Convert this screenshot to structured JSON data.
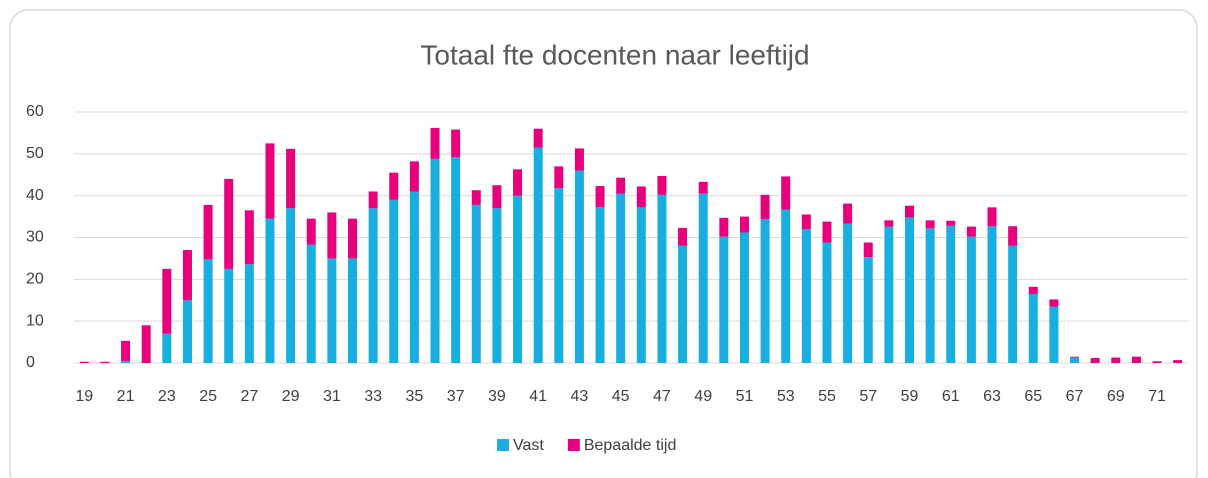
{
  "chart_data": {
    "type": "bar",
    "stacked": true,
    "title": "Totaal fte docenten naar leeftijd",
    "categories": [
      "19",
      null,
      "21",
      null,
      "23",
      null,
      "25",
      null,
      "27",
      null,
      "29",
      null,
      "31",
      null,
      "33",
      null,
      "35",
      null,
      "37",
      null,
      "39",
      null,
      "41",
      null,
      "43",
      null,
      "45",
      null,
      "47",
      null,
      "49",
      null,
      "51",
      null,
      "53",
      null,
      "55",
      null,
      "57",
      null,
      "59",
      null,
      "61",
      null,
      "63",
      null,
      "65",
      null,
      "67",
      null,
      "69",
      null,
      "71",
      null
    ],
    "series": [
      {
        "name": "Vast",
        "color": "#19ade0",
        "values": [
          0,
          0,
          0.5,
          0,
          7,
          15,
          24.8,
          22.5,
          23.6,
          34.5,
          37,
          28.3,
          25,
          25,
          37,
          39,
          41,
          48.8,
          49.2,
          37.8,
          37,
          40,
          51.5,
          41.8,
          46,
          37.3,
          40.5,
          37.2,
          40.2,
          28,
          40.5,
          30.2,
          31.2,
          34.4,
          36.7,
          32,
          28.8,
          33.3,
          25.3,
          32.6,
          34.8,
          32.2,
          32.8,
          30.2,
          32.7,
          28,
          16.5,
          13.5,
          1.3,
          0,
          0,
          0,
          0,
          0
        ]
      },
      {
        "name": "Bepaalde tijd",
        "color": "#e6007e",
        "values": [
          0.3,
          0.3,
          4.8,
          9,
          15.5,
          12,
          13,
          21.5,
          12.9,
          18,
          14.2,
          6.2,
          11,
          9.5,
          4,
          6.5,
          7.2,
          7.4,
          6.6,
          3.5,
          5.5,
          6.3,
          4.5,
          5.2,
          5.3,
          5,
          3.8,
          5,
          4.5,
          4.3,
          2.8,
          4.5,
          3.8,
          5.8,
          7.9,
          3.5,
          5,
          4.8,
          3.5,
          1.5,
          2.8,
          1.9,
          1.2,
          2.4,
          4.5,
          4.7,
          1.7,
          1.7,
          0.2,
          1.2,
          1.3,
          1.5,
          0.4,
          0.7
        ]
      }
    ],
    "ylim": [
      0,
      60
    ],
    "yticks": [
      0,
      10,
      20,
      30,
      40,
      50,
      60
    ],
    "grid": true,
    "legend": "bottom"
  }
}
